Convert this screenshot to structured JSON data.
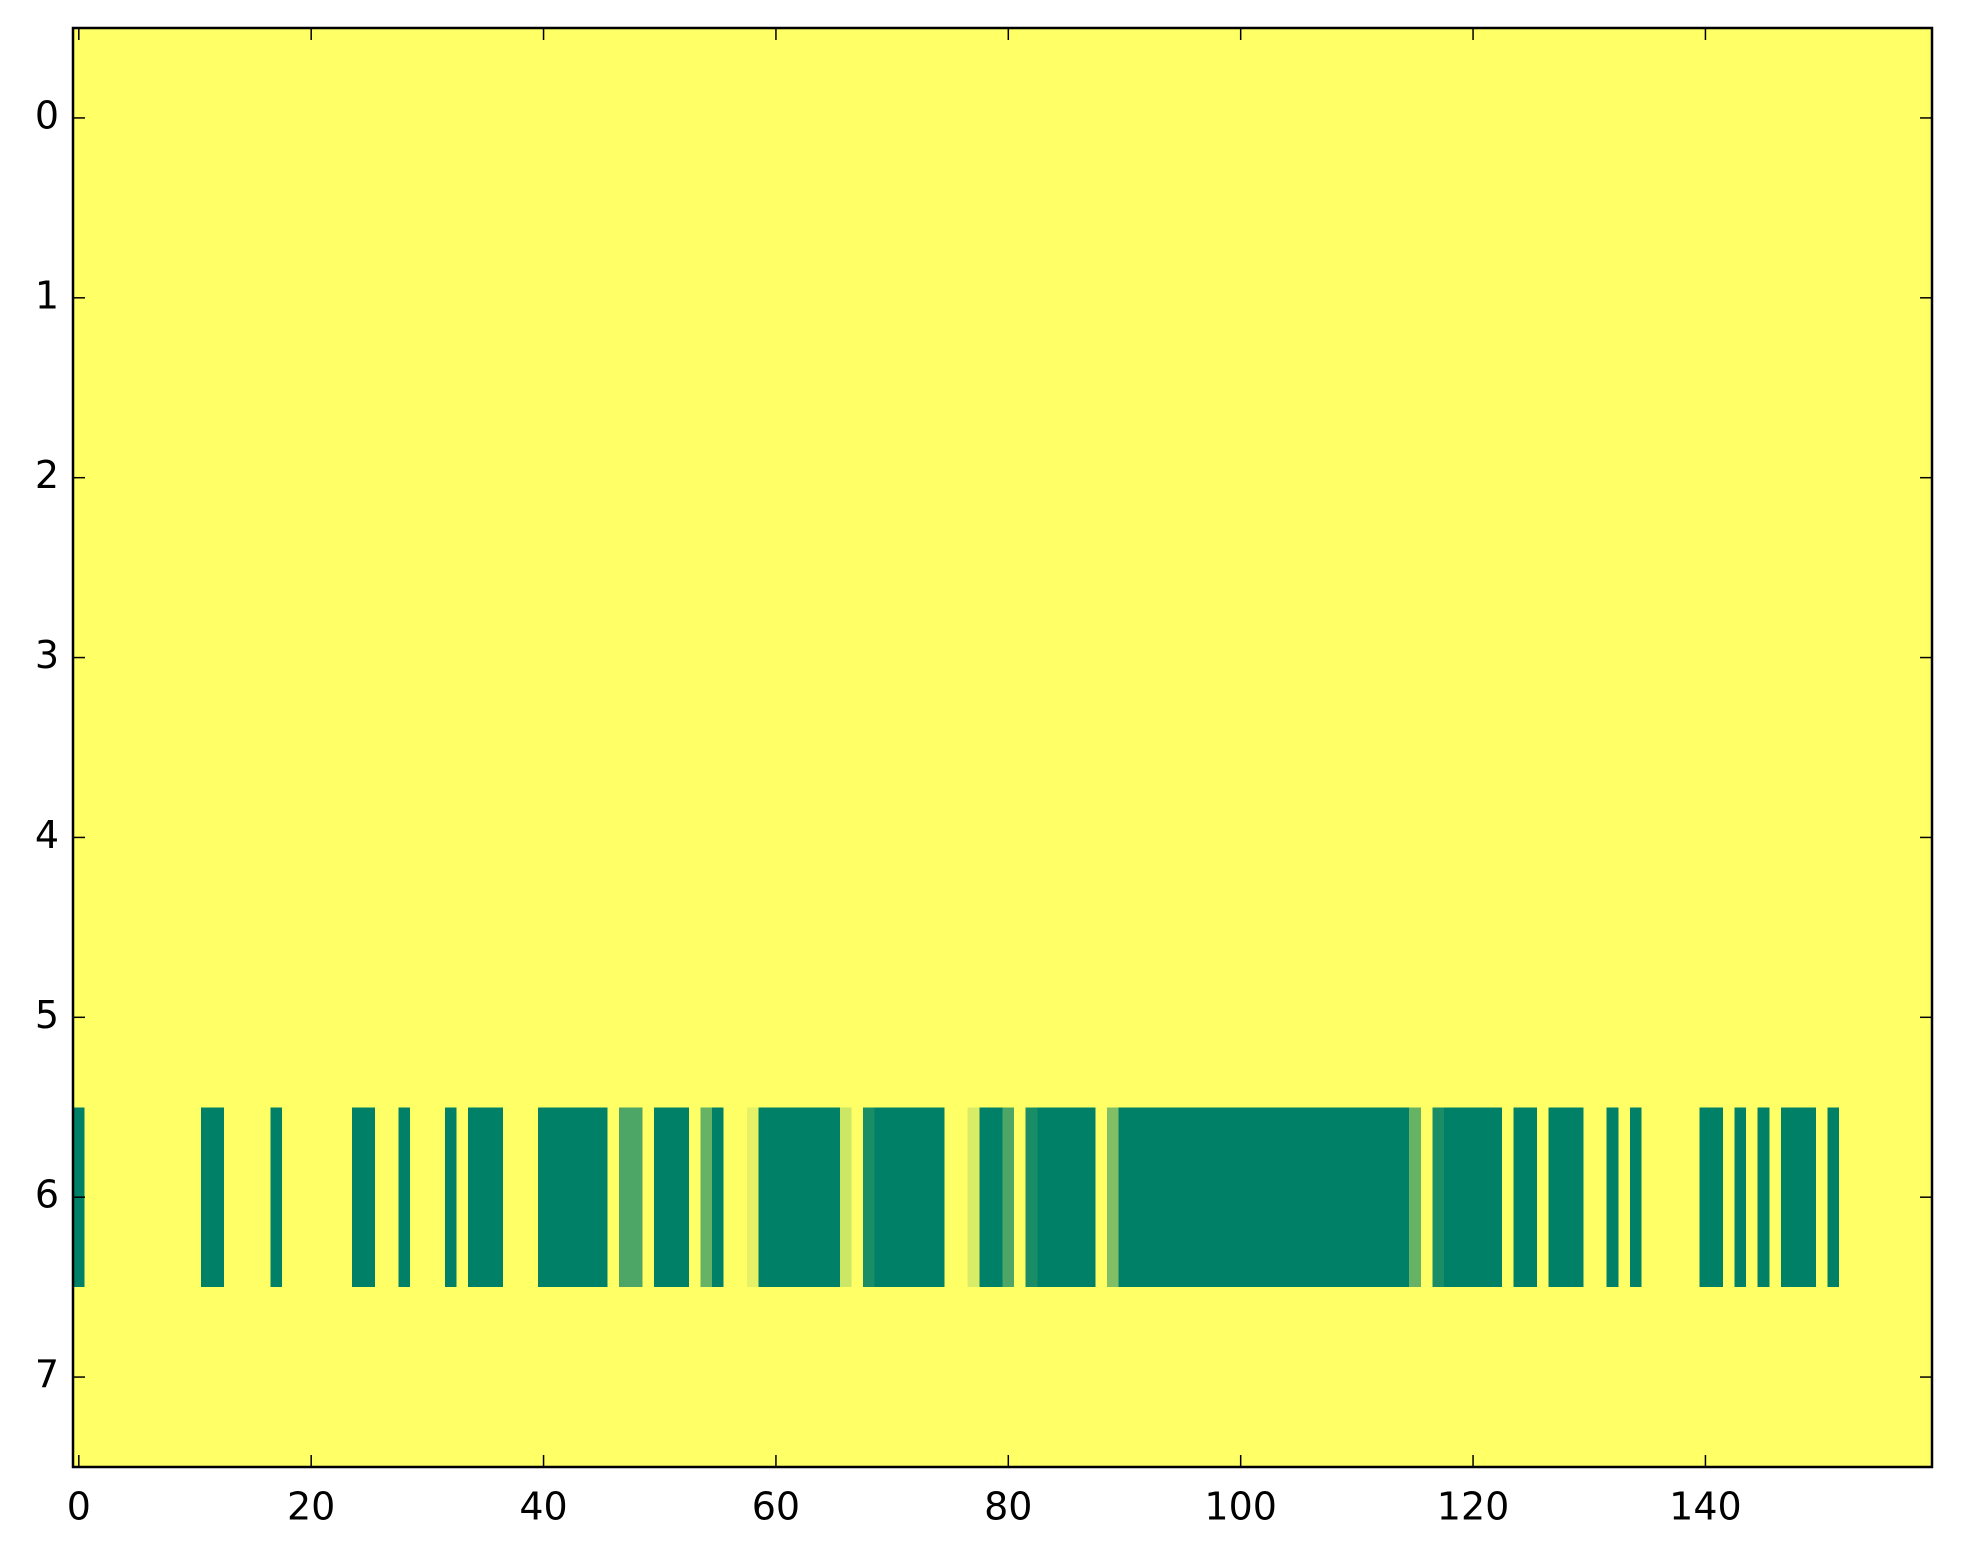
{
  "chart_data": {
    "type": "heatmap",
    "colormap": "summer",
    "zlim": [
      0,
      1
    ],
    "xlim": [
      -0.5,
      159.5
    ],
    "ylim": [
      7.5,
      -0.5
    ],
    "xticks": [
      0,
      20,
      40,
      60,
      80,
      100,
      120,
      140
    ],
    "yticks": [
      0,
      1,
      2,
      3,
      4,
      5,
      6,
      7
    ],
    "z": [
      [
        1,
        1,
        1,
        1,
        1,
        1,
        1,
        1,
        1,
        1,
        1,
        1,
        1,
        1,
        1,
        1,
        1,
        1,
        1,
        1,
        1,
        1,
        1,
        1,
        1,
        1,
        1,
        1,
        1,
        1,
        1,
        1,
        1,
        1,
        1,
        1,
        1,
        1,
        1,
        1,
        1,
        1,
        1,
        1,
        1,
        1,
        1,
        1,
        1,
        1,
        1,
        1,
        1,
        1,
        1,
        1,
        1,
        1,
        1,
        1,
        1,
        1,
        1,
        1,
        1,
        1,
        1,
        1,
        1,
        1,
        1,
        1,
        1,
        1,
        1,
        1,
        1,
        1,
        1,
        1,
        1,
        1,
        1,
        1,
        1,
        1,
        1,
        1,
        1,
        1,
        1,
        1,
        1,
        1,
        1,
        1,
        1,
        1,
        1,
        1,
        1,
        1,
        1,
        1,
        1,
        1,
        1,
        1,
        1,
        1,
        1,
        1,
        1,
        1,
        1,
        1,
        1,
        1,
        1,
        1,
        1,
        1,
        1,
        1,
        1,
        1,
        1,
        1,
        1,
        1,
        1,
        1,
        1,
        1,
        1,
        1,
        1,
        1,
        1,
        1,
        1,
        1,
        1,
        1,
        1,
        1,
        1,
        1,
        1,
        1,
        1,
        1,
        1,
        1,
        1,
        1,
        1,
        1,
        1,
        1
      ],
      [
        1,
        1,
        1,
        1,
        1,
        1,
        1,
        1,
        1,
        1,
        1,
        1,
        1,
        1,
        1,
        1,
        1,
        1,
        1,
        1,
        1,
        1,
        1,
        1,
        1,
        1,
        1,
        1,
        1,
        1,
        1,
        1,
        1,
        1,
        1,
        1,
        1,
        1,
        1,
        1,
        1,
        1,
        1,
        1,
        1,
        1,
        1,
        1,
        1,
        1,
        1,
        1,
        1,
        1,
        1,
        1,
        1,
        1,
        1,
        1,
        1,
        1,
        1,
        1,
        1,
        1,
        1,
        1,
        1,
        1,
        1,
        1,
        1,
        1,
        1,
        1,
        1,
        1,
        1,
        1,
        1,
        1,
        1,
        1,
        1,
        1,
        1,
        1,
        1,
        1,
        1,
        1,
        1,
        1,
        1,
        1,
        1,
        1,
        1,
        1,
        1,
        1,
        1,
        1,
        1,
        1,
        1,
        1,
        1,
        1,
        1,
        1,
        1,
        1,
        1,
        1,
        1,
        1,
        1,
        1,
        1,
        1,
        1,
        1,
        1,
        1,
        1,
        1,
        1,
        1,
        1,
        1,
        1,
        1,
        1,
        1,
        1,
        1,
        1,
        1,
        1,
        1,
        1,
        1,
        1,
        1,
        1,
        1,
        1,
        1,
        1,
        1,
        1,
        1,
        1,
        1,
        1,
        1,
        1,
        1
      ],
      [
        1,
        1,
        1,
        1,
        1,
        1,
        1,
        1,
        1,
        1,
        1,
        1,
        1,
        1,
        1,
        1,
        1,
        1,
        1,
        1,
        1,
        1,
        1,
        1,
        1,
        1,
        1,
        1,
        1,
        1,
        1,
        1,
        1,
        1,
        1,
        1,
        1,
        1,
        1,
        1,
        1,
        1,
        1,
        1,
        1,
        1,
        1,
        1,
        1,
        1,
        1,
        1,
        1,
        1,
        1,
        1,
        1,
        1,
        1,
        1,
        1,
        1,
        1,
        1,
        1,
        1,
        1,
        1,
        1,
        1,
        1,
        1,
        1,
        1,
        1,
        1,
        1,
        1,
        1,
        1,
        1,
        1,
        1,
        1,
        1,
        1,
        1,
        1,
        1,
        1,
        1,
        1,
        1,
        1,
        1,
        1,
        1,
        1,
        1,
        1,
        1,
        1,
        1,
        1,
        1,
        1,
        1,
        1,
        1,
        1,
        1,
        1,
        1,
        1,
        1,
        1,
        1,
        1,
        1,
        1,
        1,
        1,
        1,
        1,
        1,
        1,
        1,
        1,
        1,
        1,
        1,
        1,
        1,
        1,
        1,
        1,
        1,
        1,
        1,
        1,
        1,
        1,
        1,
        1,
        1,
        1,
        1,
        1,
        1,
        1,
        1,
        1,
        1,
        1,
        1,
        1,
        1,
        1,
        1,
        1
      ],
      [
        1,
        1,
        1,
        1,
        1,
        1,
        1,
        1,
        1,
        1,
        1,
        1,
        1,
        1,
        1,
        1,
        1,
        1,
        1,
        1,
        1,
        1,
        1,
        1,
        1,
        1,
        1,
        1,
        1,
        1,
        1,
        1,
        1,
        1,
        1,
        1,
        1,
        1,
        1,
        1,
        1,
        1,
        1,
        1,
        1,
        1,
        1,
        1,
        1,
        1,
        1,
        1,
        1,
        1,
        1,
        1,
        1,
        1,
        1,
        1,
        1,
        1,
        1,
        1,
        1,
        1,
        1,
        1,
        1,
        1,
        1,
        1,
        1,
        1,
        1,
        1,
        1,
        1,
        1,
        1,
        1,
        1,
        1,
        1,
        1,
        1,
        1,
        1,
        1,
        1,
        1,
        1,
        1,
        1,
        1,
        1,
        1,
        1,
        1,
        1,
        1,
        1,
        1,
        1,
        1,
        1,
        1,
        1,
        1,
        1,
        1,
        1,
        1,
        1,
        1,
        1,
        1,
        1,
        1,
        1,
        1,
        1,
        1,
        1,
        1,
        1,
        1,
        1,
        1,
        1,
        1,
        1,
        1,
        1,
        1,
        1,
        1,
        1,
        1,
        1,
        1,
        1,
        1,
        1,
        1,
        1,
        1,
        1,
        1,
        1,
        1,
        1,
        1,
        1,
        1,
        1,
        1,
        1,
        1,
        1
      ],
      [
        1,
        1,
        1,
        1,
        1,
        1,
        1,
        1,
        1,
        1,
        1,
        1,
        1,
        1,
        1,
        1,
        1,
        1,
        1,
        1,
        1,
        1,
        1,
        1,
        1,
        1,
        1,
        1,
        1,
        1,
        1,
        1,
        1,
        1,
        1,
        1,
        1,
        1,
        1,
        1,
        1,
        1,
        1,
        1,
        1,
        1,
        1,
        1,
        1,
        1,
        1,
        1,
        1,
        1,
        1,
        1,
        1,
        1,
        1,
        1,
        1,
        1,
        1,
        1,
        1,
        1,
        1,
        1,
        1,
        1,
        1,
        1,
        1,
        1,
        1,
        1,
        1,
        1,
        1,
        1,
        1,
        1,
        1,
        1,
        1,
        1,
        1,
        1,
        1,
        1,
        1,
        1,
        1,
        1,
        1,
        1,
        1,
        1,
        1,
        1,
        1,
        1,
        1,
        1,
        1,
        1,
        1,
        1,
        1,
        1,
        1,
        1,
        1,
        1,
        1,
        1,
        1,
        1,
        1,
        1,
        1,
        1,
        1,
        1,
        1,
        1,
        1,
        1,
        1,
        1,
        1,
        1,
        1,
        1,
        1,
        1,
        1,
        1,
        1,
        1,
        1,
        1,
        1,
        1,
        1,
        1,
        1,
        1,
        1,
        1,
        1,
        1,
        1,
        1,
        1,
        1,
        1,
        1,
        1,
        1
      ],
      [
        1,
        1,
        1,
        1,
        1,
        1,
        1,
        1,
        1,
        1,
        1,
        1,
        1,
        1,
        1,
        1,
        1,
        1,
        1,
        1,
        1,
        1,
        1,
        1,
        1,
        1,
        1,
        1,
        1,
        1,
        1,
        1,
        1,
        1,
        1,
        1,
        1,
        1,
        1,
        1,
        1,
        1,
        1,
        1,
        1,
        1,
        1,
        1,
        1,
        1,
        1,
        1,
        1,
        1,
        1,
        1,
        1,
        1,
        1,
        1,
        1,
        1,
        1,
        1,
        1,
        1,
        1,
        1,
        1,
        1,
        1,
        1,
        1,
        1,
        1,
        1,
        1,
        1,
        1,
        1,
        1,
        1,
        1,
        1,
        1,
        1,
        1,
        1,
        1,
        1,
        1,
        1,
        1,
        1,
        1,
        1,
        1,
        1,
        1,
        1,
        1,
        1,
        1,
        1,
        1,
        1,
        1,
        1,
        1,
        1,
        1,
        1,
        1,
        1,
        1,
        1,
        1,
        1,
        1,
        1,
        1,
        1,
        1,
        1,
        1,
        1,
        1,
        1,
        1,
        1,
        1,
        1,
        1,
        1,
        1,
        1,
        1,
        1,
        1,
        1,
        1,
        1,
        1,
        1,
        1,
        1,
        1,
        1,
        1,
        1,
        1,
        1,
        1,
        1,
        1,
        1,
        1,
        1,
        1,
        1
      ],
      [
        0,
        1,
        1,
        1,
        1,
        1,
        1,
        1,
        1,
        1,
        1,
        0,
        0,
        1,
        1,
        1,
        1,
        0,
        1,
        1,
        1,
        1,
        1,
        1,
        0,
        0,
        1,
        1,
        0,
        1,
        1,
        1,
        0,
        1,
        0,
        0,
        0,
        1,
        1,
        1,
        0,
        0,
        0,
        0,
        0,
        0,
        1,
        0.3,
        0.3,
        1,
        0,
        0,
        0,
        1,
        0.4,
        0,
        1,
        1,
        0.9,
        0,
        0,
        0,
        0,
        0,
        0,
        0,
        0.8,
        1,
        0.1,
        0,
        0,
        0,
        0,
        0,
        0,
        1,
        1,
        0.85,
        0,
        0,
        0.3,
        1,
        0.1,
        0,
        0,
        0,
        0,
        0,
        1,
        0.5,
        0,
        0,
        0,
        0,
        0,
        0,
        0,
        0,
        0,
        0,
        0,
        0,
        0,
        0,
        0,
        0,
        0,
        0,
        0,
        0,
        0,
        0,
        0,
        0,
        0,
        0.4,
        1,
        0.1,
        0,
        0,
        0,
        0,
        0,
        1,
        0,
        0,
        1,
        0,
        0,
        0,
        1,
        1,
        0,
        1,
        0,
        1,
        1,
        1,
        1,
        1,
        0,
        0,
        1,
        0,
        1,
        0,
        1,
        0,
        0,
        0,
        1,
        0,
        1,
        1,
        1,
        1,
        1,
        1,
        1,
        1
      ],
      [
        1,
        1,
        1,
        1,
        1,
        1,
        1,
        1,
        1,
        1,
        1,
        1,
        1,
        1,
        1,
        1,
        1,
        1,
        1,
        1,
        1,
        1,
        1,
        1,
        1,
        1,
        1,
        1,
        1,
        1,
        1,
        1,
        1,
        1,
        1,
        1,
        1,
        1,
        1,
        1,
        1,
        1,
        1,
        1,
        1,
        1,
        1,
        1,
        1,
        1,
        1,
        1,
        1,
        1,
        1,
        1,
        1,
        1,
        1,
        1,
        1,
        1,
        1,
        1,
        1,
        1,
        1,
        1,
        1,
        1,
        1,
        1,
        1,
        1,
        1,
        1,
        1,
        1,
        1,
        1,
        1,
        1,
        1,
        1,
        1,
        1,
        1,
        1,
        1,
        1,
        1,
        1,
        1,
        1,
        1,
        1,
        1,
        1,
        1,
        1,
        1,
        1,
        1,
        1,
        1,
        1,
        1,
        1,
        1,
        1,
        1,
        1,
        1,
        1,
        1,
        1,
        1,
        1,
        1,
        1,
        1,
        1,
        1,
        1,
        1,
        1,
        1,
        1,
        1,
        1,
        1,
        1,
        1,
        1,
        1,
        1,
        1,
        1,
        1,
        1,
        1,
        1,
        1,
        1,
        1,
        1,
        1,
        1,
        1,
        1,
        1,
        1,
        1,
        1,
        1,
        1,
        1,
        1,
        1,
        1
      ]
    ]
  }
}
